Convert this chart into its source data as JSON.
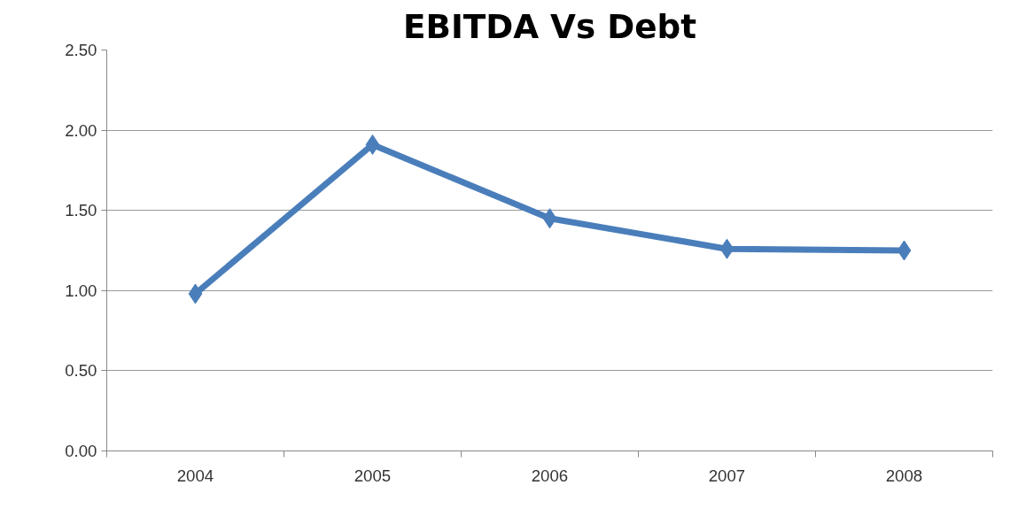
{
  "chart_data": {
    "type": "line",
    "title": "EBITDA Vs Debt",
    "categories": [
      "2004",
      "2005",
      "2006",
      "2007",
      "2008"
    ],
    "series": [
      {
        "color": "#4a7ebb",
        "values": [
          0.98,
          1.91,
          1.45,
          1.26,
          1.25
        ]
      }
    ],
    "ylim": [
      0,
      2.5
    ],
    "yticks": [
      {
        "value": 0,
        "label": "0.00"
      },
      {
        "value": 0.5,
        "label": "0.50"
      },
      {
        "value": 1,
        "label": "1.00"
      },
      {
        "value": 1.5,
        "label": "1.50"
      },
      {
        "value": 2,
        "label": "2.00"
      },
      {
        "value": 2.5,
        "label": "2.50"
      }
    ],
    "grid": "y",
    "marker": "diamond",
    "line_style": "solid"
  }
}
